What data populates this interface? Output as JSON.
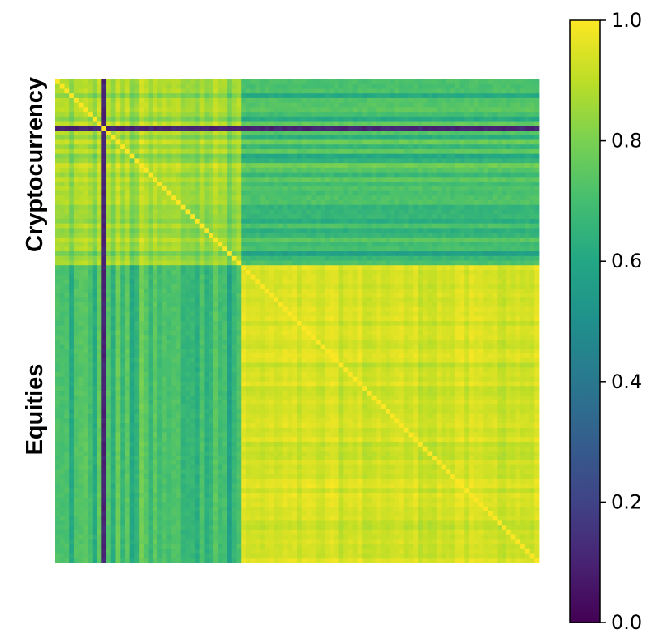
{
  "chart_data": {
    "type": "heatmap",
    "title": "",
    "xlabel": "",
    "ylabel": "",
    "colormap": "viridis",
    "value_range": [
      0,
      1
    ],
    "groups": [
      {
        "name": "Cryptocurrency",
        "count": 40
      },
      {
        "name": "Equities",
        "count": 64
      }
    ],
    "block_mean": {
      "crypto_crypto": 0.84,
      "crypto_equities": 0.68,
      "equities_equities": 0.94
    },
    "outlier_asset_index": 10,
    "outlier_correlation_with_others": 0.08,
    "colorbar": {
      "ticks": [
        0.0,
        0.2,
        0.4,
        0.6,
        0.8,
        1.0
      ],
      "tick_labels": [
        "0.0",
        "0.2",
        "0.4",
        "0.6",
        "0.8",
        "1.0"
      ]
    }
  }
}
